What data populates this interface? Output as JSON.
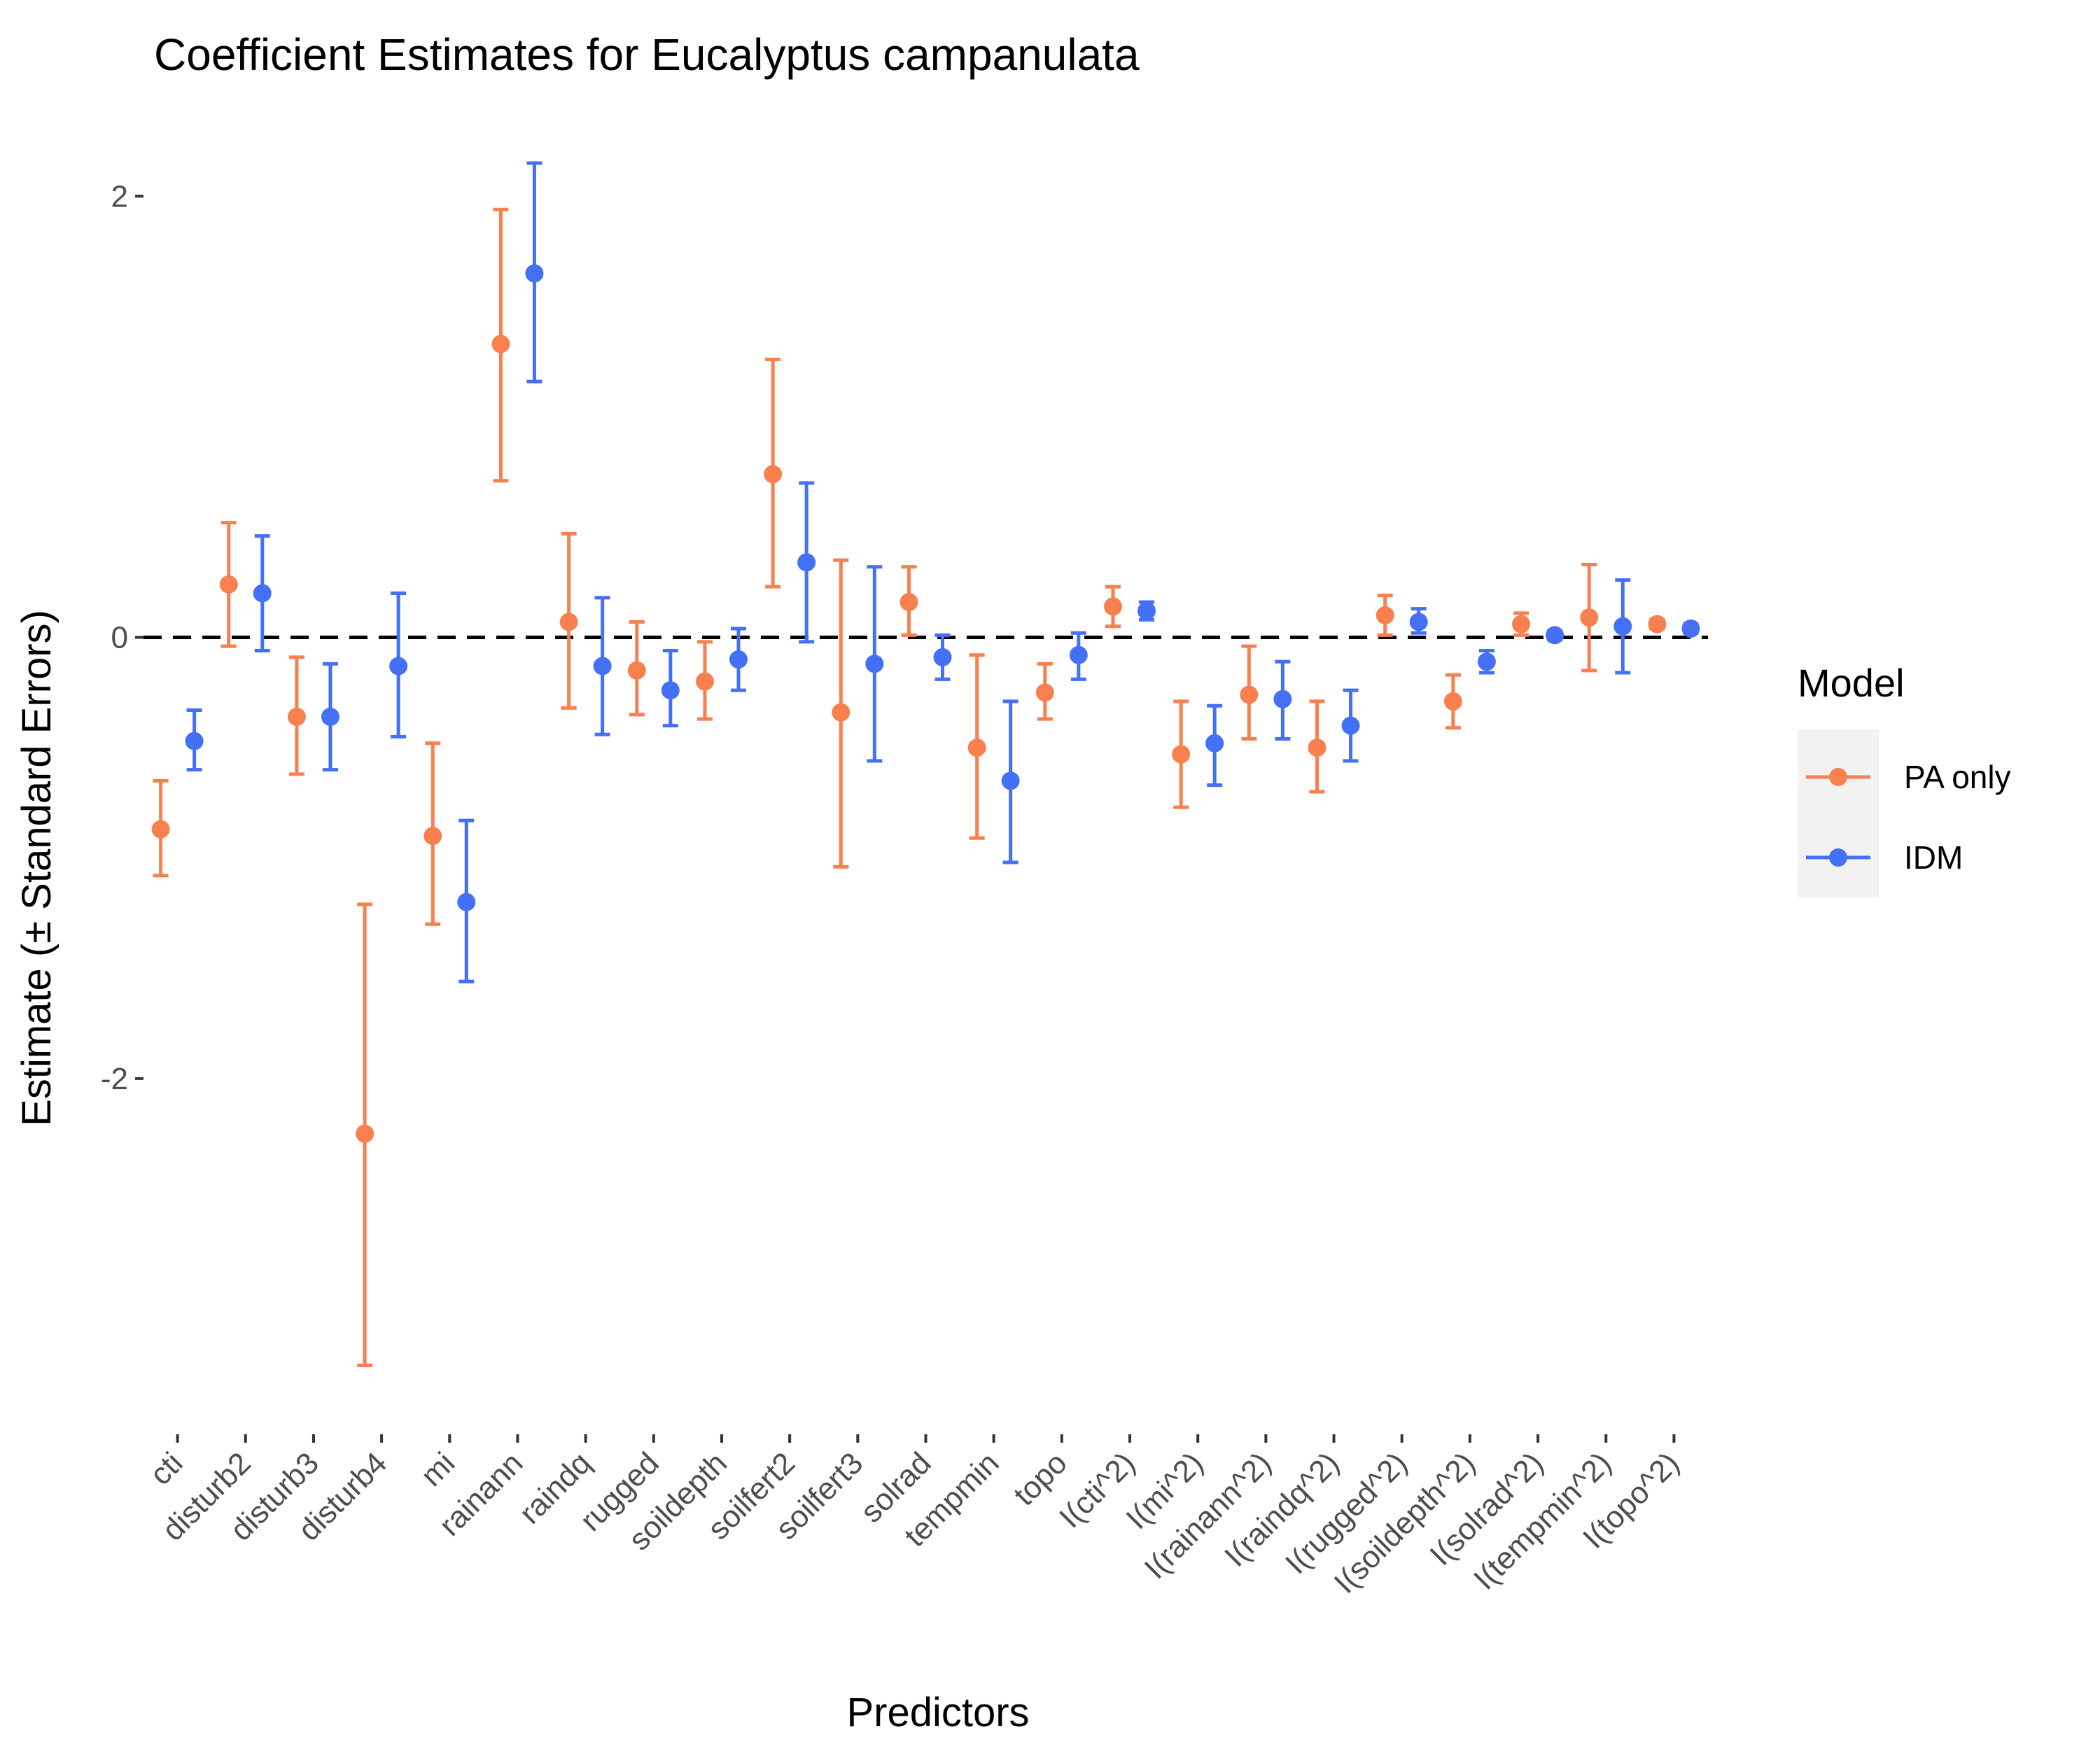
{
  "chart_data": {
    "type": "errorbar",
    "title": "Coefficient Estimates for Eucalyptus campanulata",
    "xlabel": "Predictors",
    "ylabel": "Estimate (± Standard Errors)",
    "ylim": [
      -3.6,
      2.35
    ],
    "yticks": [
      -2,
      0,
      2
    ],
    "ytick_labels": [
      "-2",
      "0",
      "2"
    ],
    "reference_line": 0,
    "grid": false,
    "legend": {
      "title": "Model",
      "position": "right"
    },
    "categories": [
      "cti",
      "disturb2",
      "disturb3",
      "disturb4",
      "mi",
      "rainann",
      "raindq",
      "rugged",
      "soildepth",
      "soilfert2",
      "soilfert3",
      "solrad",
      "tempmin",
      "topo",
      "I(cti^2)",
      "I(mi^2)",
      "I(rainann^2)",
      "I(raindq^2)",
      "I(rugged^2)",
      "I(soildepth^2)",
      "I(solrad^2)",
      "I(tempmin^2)",
      "I(topo^2)"
    ],
    "series": [
      {
        "name": "PA only",
        "color": "#F8804F",
        "estimate": [
          -0.87,
          0.24,
          -0.36,
          -2.25,
          -0.9,
          1.33,
          0.07,
          -0.15,
          -0.2,
          0.74,
          -0.34,
          0.16,
          -0.5,
          -0.25,
          0.14,
          -0.53,
          -0.26,
          -0.5,
          0.1,
          -0.29,
          0.06,
          0.09,
          0.06
        ],
        "lower": [
          -1.08,
          -0.04,
          -0.62,
          -3.3,
          -1.3,
          0.71,
          -0.32,
          -0.35,
          -0.37,
          0.23,
          -1.04,
          0.01,
          -0.91,
          -0.37,
          0.05,
          -0.77,
          -0.46,
          -0.7,
          0.01,
          -0.41,
          0.01,
          -0.15,
          0.04
        ],
        "upper": [
          -0.65,
          0.52,
          -0.09,
          -1.21,
          -0.48,
          1.94,
          0.47,
          0.07,
          -0.02,
          1.26,
          0.35,
          0.32,
          -0.08,
          -0.12,
          0.23,
          -0.29,
          -0.04,
          -0.29,
          0.19,
          -0.17,
          0.11,
          0.33,
          0.08
        ]
      },
      {
        "name": "IDM",
        "color": "#4470F5",
        "estimate": [
          -0.47,
          0.2,
          -0.36,
          -0.13,
          -1.2,
          1.65,
          -0.13,
          -0.24,
          -0.1,
          0.34,
          -0.12,
          -0.09,
          -0.65,
          -0.08,
          0.12,
          -0.48,
          -0.28,
          -0.4,
          0.07,
          -0.11,
          0.01,
          0.05,
          0.04
        ],
        "lower": [
          -0.6,
          -0.06,
          -0.6,
          -0.45,
          -1.56,
          1.16,
          -0.44,
          -0.4,
          -0.24,
          -0.02,
          -0.56,
          -0.19,
          -1.02,
          -0.19,
          0.08,
          -0.67,
          -0.46,
          -0.56,
          0.02,
          -0.16,
          -0.01,
          -0.16,
          0.02
        ],
        "upper": [
          -0.33,
          0.46,
          -0.12,
          0.2,
          -0.83,
          2.15,
          0.18,
          -0.06,
          0.04,
          0.7,
          0.32,
          0.01,
          -0.29,
          0.02,
          0.16,
          -0.31,
          -0.11,
          -0.24,
          0.13,
          -0.06,
          0.03,
          0.26,
          0.06
        ]
      }
    ]
  }
}
